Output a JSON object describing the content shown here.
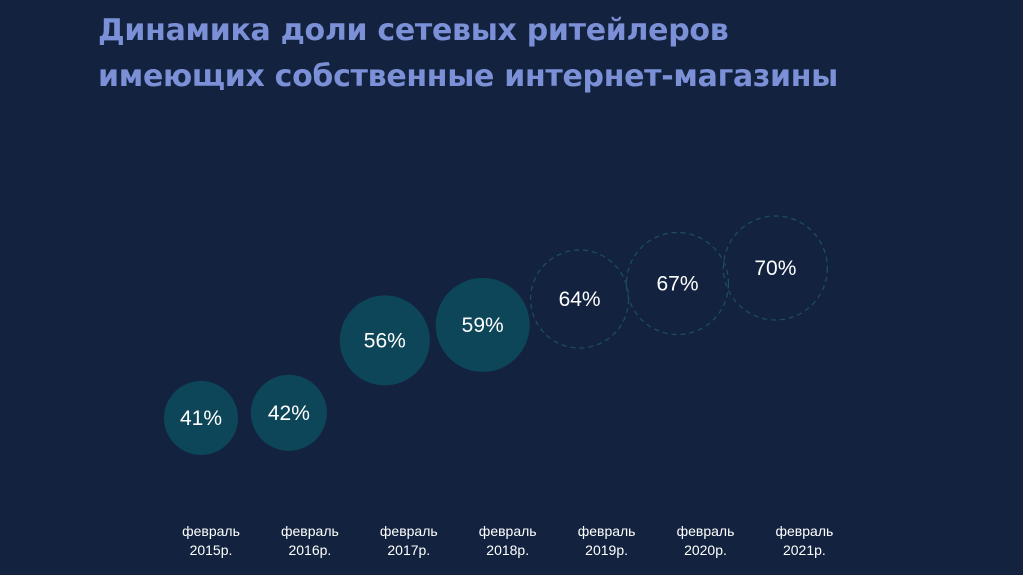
{
  "title": {
    "line1": "Динамика доли сетевых ритейлеров",
    "line2": "имеющих собственные интернет-магазины"
  },
  "colors": {
    "background": "#13233f",
    "title": "#7b90d6",
    "bubble_fill": "#0d4658",
    "bubble_dashed_stroke": "#1d4d66",
    "text": "#ffffff"
  },
  "chart_data": {
    "type": "bubble",
    "title": "Динамика доли сетевых ритейлеров имеющих собственные интернет-магазины",
    "categories": [
      [
        "февраль",
        "2015р."
      ],
      [
        "февраль",
        "2016р."
      ],
      [
        "февраль",
        "2017р."
      ],
      [
        "февраль",
        "2018р."
      ],
      [
        "февраль",
        "2019р."
      ],
      [
        "февраль",
        "2020р."
      ],
      [
        "февраль",
        "2021р."
      ]
    ],
    "values": [
      41,
      42,
      56,
      59,
      64,
      67,
      70
    ],
    "labels": [
      "41%",
      "42%",
      "56%",
      "59%",
      "64%",
      "67%",
      "70%"
    ],
    "style": [
      "solid",
      "solid",
      "solid",
      "solid",
      "dashed",
      "dashed",
      "dashed"
    ],
    "unit": "%",
    "grid": false,
    "legend": "none"
  }
}
